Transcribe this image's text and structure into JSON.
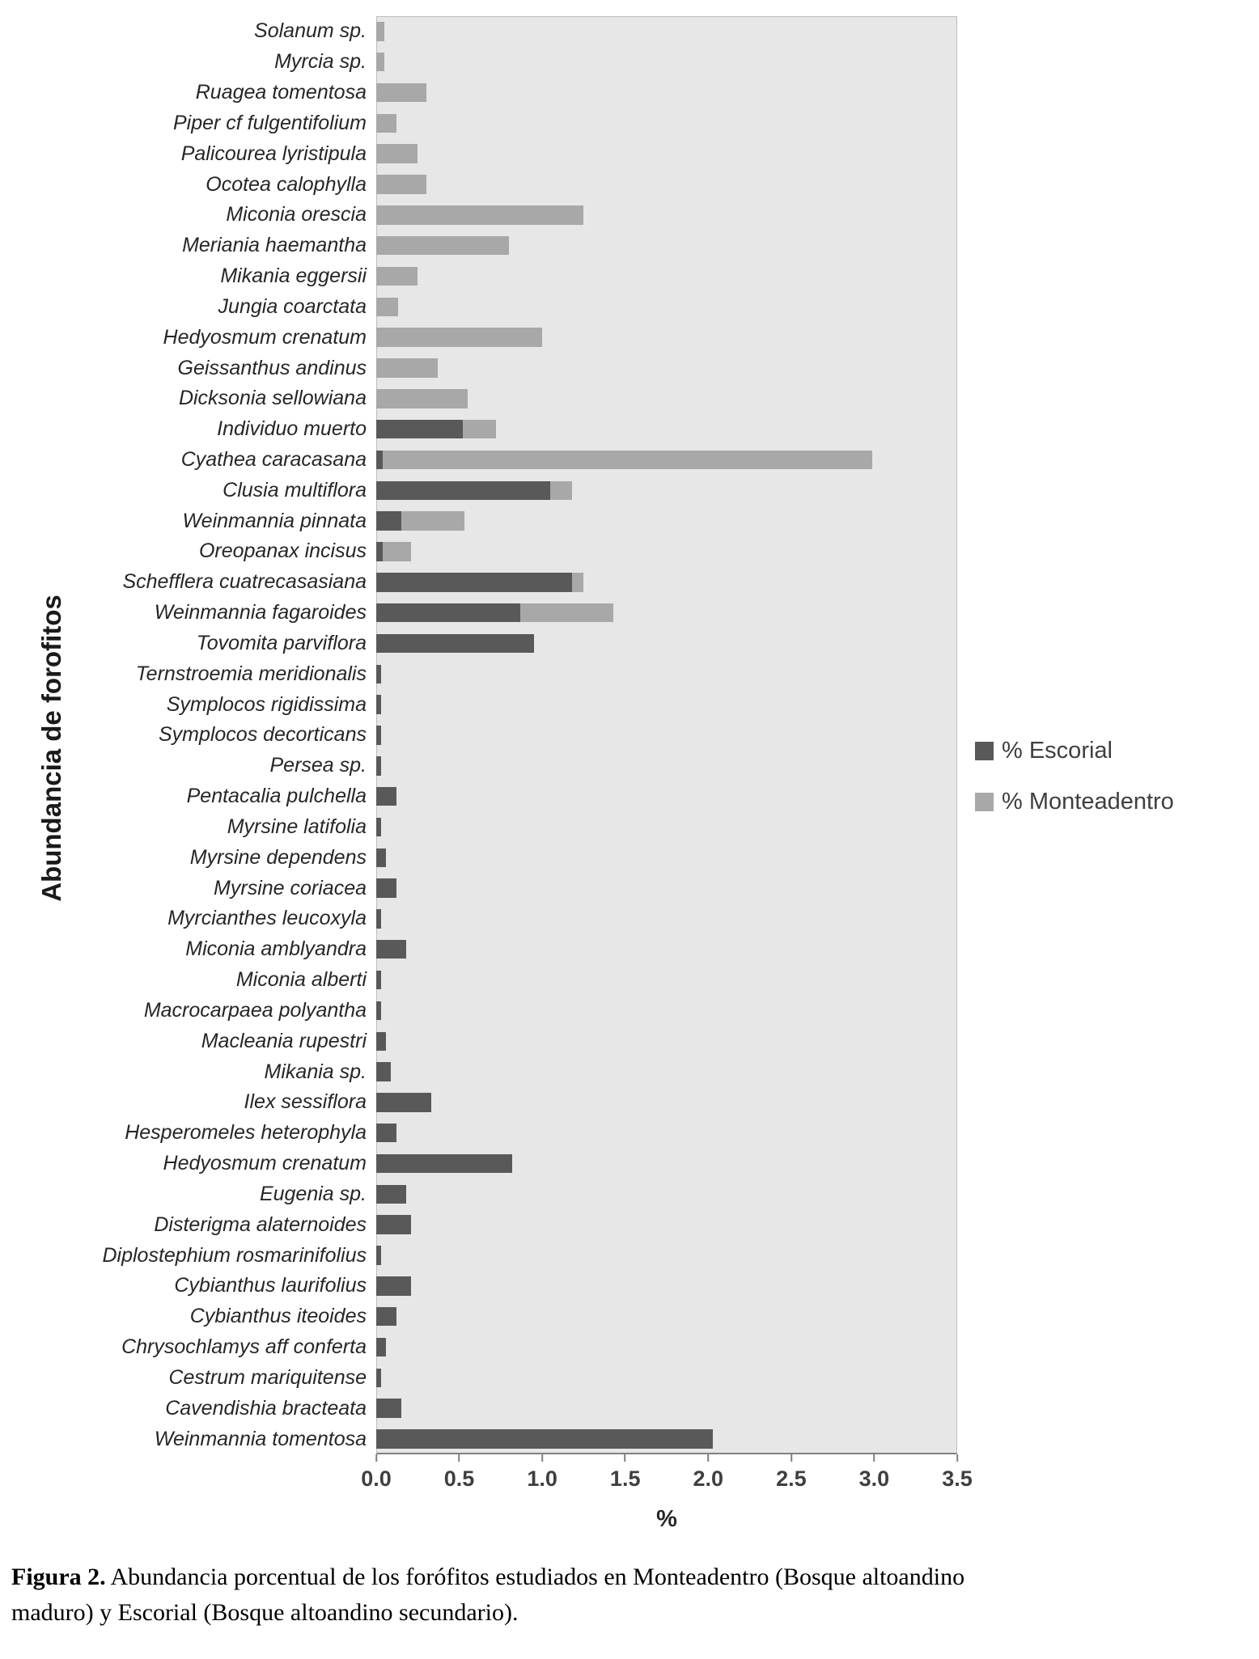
{
  "figure": {
    "caption_label": "Figura 2.",
    "caption_text": " Abundancia porcentual de los forófitos estudiados en Monteadentro (Bosque altoandino maduro) y Escorial (Bosque altoandino secundario)."
  },
  "chart_data": {
    "type": "bar",
    "orientation": "horizontal",
    "stacked": true,
    "title": "",
    "xlabel": "%",
    "ylabel": "Abundancia de forofitos",
    "xlim": [
      0,
      3.5
    ],
    "xticks": [
      "0.0",
      "0.5",
      "1.0",
      "1.5",
      "2.0",
      "2.5",
      "3.0",
      "3.5"
    ],
    "grid": false,
    "plot_background": "#e7e7e7",
    "legend_position": "right",
    "categories": [
      "Solanum sp.",
      "Myrcia sp.",
      "Ruagea tomentosa",
      "Piper cf fulgentifolium",
      "Palicourea lyristipula",
      "Ocotea calophylla",
      "Miconia orescia",
      "Meriania haemantha",
      "Mikania eggersii",
      "Jungia coarctata",
      "Hedyosmum crenatum",
      "Geissanthus andinus",
      "Dicksonia sellowiana",
      "Individuo muerto",
      "Cyathea caracasana",
      "Clusia multiflora",
      "Weinmannia pinnata",
      "Oreopanax incisus",
      "Schefflera cuatrecasasiana",
      "Weinmannia fagaroides",
      "Tovomita parviflora",
      "Ternstroemia meridionalis",
      "Symplocos rigidissima",
      "Symplocos decorticans",
      "Persea sp.",
      "Pentacalia pulchella",
      "Myrsine latifolia",
      "Myrsine dependens",
      "Myrsine coriacea",
      "Myrcianthes leucoxyla",
      "Miconia amblyandra",
      "Miconia alberti",
      "Macrocarpaea polyantha",
      "Macleania rupestri",
      "Mikania sp.",
      "Ilex sessiflora",
      "Hesperomeles heterophyla",
      "Hedyosmum crenatum",
      "Eugenia sp.",
      "Disterigma alaternoides",
      "Diplostephium rosmarinifolius",
      "Cybianthus laurifolius",
      "Cybianthus iteoides",
      "Chrysochlamys aff conferta",
      "Cestrum mariquitense",
      "Cavendishia bracteata",
      "Weinmannia tomentosa"
    ],
    "series": [
      {
        "name": "% Escorial",
        "color": "#595959",
        "values": [
          0,
          0,
          0,
          0,
          0,
          0,
          0,
          0,
          0,
          0,
          0,
          0,
          0,
          0.52,
          0.04,
          1.05,
          0.15,
          0.04,
          1.18,
          0.87,
          0.95,
          0.03,
          0.03,
          0.03,
          0.03,
          0.12,
          0.03,
          0.06,
          0.12,
          0.03,
          0.18,
          0.03,
          0.03,
          0.06,
          0.09,
          0.33,
          0.12,
          0.82,
          0.18,
          0.21,
          0.03,
          0.21,
          0.12,
          0.06,
          0.03,
          0.15,
          2.03
        ]
      },
      {
        "name": "% Monteadentro",
        "color": "#a8a8a8",
        "values": [
          0.05,
          0.05,
          0.3,
          0.12,
          0.25,
          0.3,
          1.25,
          0.8,
          0.25,
          0.13,
          1.0,
          0.37,
          0.55,
          0.2,
          2.95,
          0.13,
          0.38,
          0.17,
          0.07,
          0.56,
          0,
          0,
          0,
          0,
          0,
          0,
          0,
          0,
          0,
          0,
          0,
          0,
          0,
          0,
          0,
          0,
          0,
          0,
          0,
          0,
          0,
          0,
          0,
          0,
          0,
          0,
          0
        ]
      }
    ]
  }
}
